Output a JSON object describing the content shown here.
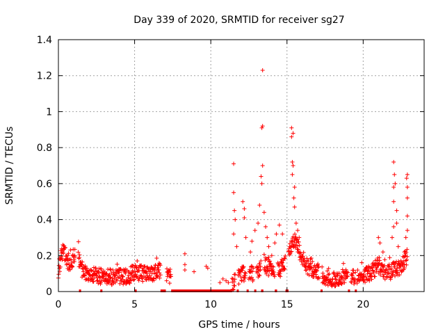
{
  "chart_data": {
    "type": "scatter",
    "title": "Day 339 of 2020, SRMTID for receiver sg27",
    "xlabel": "GPS time / hours",
    "ylabel": "SRMTID / TECUs",
    "xlim": [
      0,
      24
    ],
    "ylim": [
      0,
      1.4
    ],
    "xticks": [
      0,
      5,
      10,
      15,
      20
    ],
    "xtick_labels": [
      "0",
      "5",
      "10",
      "15",
      "20"
    ],
    "yticks": [
      0,
      0.2,
      0.4,
      0.6,
      0.8,
      1.0,
      1.2,
      1.4
    ],
    "ytick_labels": [
      "0",
      "0.2",
      "0.4",
      "0.6",
      "0.8",
      "1",
      "1.2",
      "1.4"
    ],
    "grid": true,
    "marker": "+",
    "color": "#ff0000",
    "baseline": [
      [
        0.0,
        0.12
      ],
      [
        0.25,
        0.22
      ],
      [
        0.5,
        0.2
      ],
      [
        0.75,
        0.14
      ],
      [
        1.0,
        0.2
      ],
      [
        1.25,
        0.22
      ],
      [
        1.5,
        0.13
      ],
      [
        1.75,
        0.1
      ],
      [
        2.0,
        0.1
      ],
      [
        2.5,
        0.09
      ],
      [
        3.0,
        0.08
      ],
      [
        3.5,
        0.08
      ],
      [
        4.0,
        0.08
      ],
      [
        4.5,
        0.08
      ],
      [
        5.0,
        0.11
      ],
      [
        5.5,
        0.1
      ],
      [
        6.0,
        0.09
      ],
      [
        6.5,
        0.12
      ],
      [
        7.0,
        0.1
      ],
      [
        7.5,
        0.07
      ],
      [
        11.5,
        0.05
      ],
      [
        12.0,
        0.1
      ],
      [
        12.5,
        0.1
      ],
      [
        13.0,
        0.1
      ],
      [
        13.5,
        0.15
      ],
      [
        14.0,
        0.12
      ],
      [
        14.5,
        0.12
      ],
      [
        15.0,
        0.18
      ],
      [
        15.5,
        0.3
      ],
      [
        16.0,
        0.18
      ],
      [
        16.5,
        0.12
      ],
      [
        17.0,
        0.11
      ],
      [
        17.5,
        0.08
      ],
      [
        18.0,
        0.07
      ],
      [
        18.5,
        0.08
      ],
      [
        19.0,
        0.08
      ],
      [
        19.5,
        0.08
      ],
      [
        20.0,
        0.09
      ],
      [
        20.5,
        0.1
      ],
      [
        21.0,
        0.15
      ],
      [
        21.5,
        0.1
      ],
      [
        22.0,
        0.12
      ],
      [
        22.5,
        0.14
      ],
      [
        22.9,
        0.2
      ]
    ],
    "segments": [
      [
        0.0,
        1.1
      ],
      [
        1.3,
        6.7
      ],
      [
        7.1,
        7.4
      ],
      [
        11.4,
        11.6
      ],
      [
        11.8,
        12.3
      ],
      [
        12.5,
        12.8
      ],
      [
        13.0,
        13.3
      ],
      [
        13.5,
        14.2
      ],
      [
        14.4,
        14.9
      ],
      [
        15.1,
        17.1
      ],
      [
        17.3,
        19.0
      ],
      [
        19.2,
        19.5
      ],
      [
        19.6,
        22.9
      ]
    ],
    "scattered_points": [
      [
        8.3,
        0.15
      ],
      [
        8.3,
        0.21
      ],
      [
        8.3,
        0.12
      ],
      [
        8.9,
        0.11
      ],
      [
        9.7,
        0.14
      ],
      [
        9.8,
        0.13
      ],
      [
        10.6,
        0.05
      ],
      [
        10.8,
        0.07
      ],
      [
        11.0,
        0.06
      ],
      [
        11.15,
        0.05
      ]
    ],
    "spikes": [
      [
        11.5,
        0.71
      ],
      [
        11.5,
        0.55
      ],
      [
        11.55,
        0.45
      ],
      [
        11.6,
        0.4
      ],
      [
        11.5,
        0.32
      ],
      [
        11.7,
        0.25
      ],
      [
        12.1,
        0.5
      ],
      [
        12.2,
        0.46
      ],
      [
        12.2,
        0.41
      ],
      [
        12.3,
        0.3
      ],
      [
        12.6,
        0.22
      ],
      [
        12.7,
        0.28
      ],
      [
        12.9,
        0.34
      ],
      [
        13.1,
        0.38
      ],
      [
        13.2,
        0.48
      ],
      [
        13.3,
        0.64
      ],
      [
        13.35,
        0.6
      ],
      [
        13.4,
        0.7
      ],
      [
        13.35,
        0.91
      ],
      [
        13.4,
        0.92
      ],
      [
        13.4,
        1.23
      ],
      [
        13.5,
        0.44
      ],
      [
        13.6,
        0.36
      ],
      [
        13.7,
        0.3
      ],
      [
        13.8,
        0.25
      ],
      [
        14.0,
        0.2
      ],
      [
        14.2,
        0.27
      ],
      [
        14.3,
        0.32
      ],
      [
        14.5,
        0.37
      ],
      [
        14.7,
        0.32
      ],
      [
        15.3,
        0.91
      ],
      [
        15.3,
        0.86
      ],
      [
        15.4,
        0.88
      ],
      [
        15.35,
        0.72
      ],
      [
        15.4,
        0.7
      ],
      [
        15.35,
        0.65
      ],
      [
        15.5,
        0.58
      ],
      [
        15.45,
        0.52
      ],
      [
        15.5,
        0.47
      ],
      [
        15.6,
        0.38
      ],
      [
        15.7,
        0.34
      ],
      [
        15.8,
        0.3
      ],
      [
        21.0,
        0.3
      ],
      [
        21.1,
        0.27
      ],
      [
        21.3,
        0.22
      ],
      [
        21.9,
        0.3
      ],
      [
        22.0,
        0.36
      ],
      [
        22.0,
        0.5
      ],
      [
        22.0,
        0.58
      ],
      [
        22.05,
        0.65
      ],
      [
        22.0,
        0.72
      ],
      [
        22.1,
        0.6
      ],
      [
        22.2,
        0.45
      ],
      [
        22.2,
        0.38
      ],
      [
        22.3,
        0.25
      ],
      [
        22.7,
        0.22
      ],
      [
        22.8,
        0.3
      ],
      [
        22.9,
        0.34
      ],
      [
        22.9,
        0.42
      ],
      [
        22.9,
        0.52
      ],
      [
        22.9,
        0.58
      ],
      [
        22.85,
        0.63
      ],
      [
        22.9,
        0.65
      ]
    ],
    "data_gaps_y0": [
      [
        1.35,
        1.45
      ],
      [
        2.75,
        2.85
      ],
      [
        5.0,
        5.1
      ],
      [
        6.7,
        7.05
      ],
      [
        7.4,
        11.4
      ],
      [
        11.7,
        11.78
      ],
      [
        12.35,
        12.45
      ],
      [
        12.85,
        12.95
      ],
      [
        13.3,
        13.45
      ],
      [
        14.2,
        14.35
      ],
      [
        14.9,
        15.1
      ],
      [
        17.2,
        17.3
      ],
      [
        19.0,
        19.1
      ],
      [
        19.45,
        19.55
      ]
    ]
  }
}
